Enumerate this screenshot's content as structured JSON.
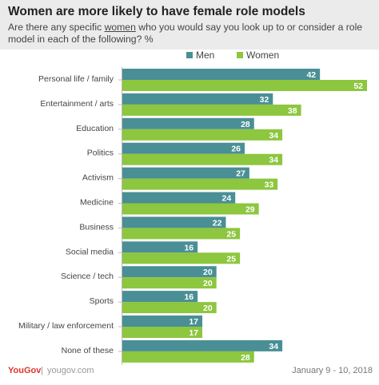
{
  "header": {
    "title": "Women are more likely to have female role models",
    "subtitle_pre": "Are there any specific ",
    "subtitle_underlined": "women",
    "subtitle_post": " who you would say you look up to or consider a role model in each of the following? %"
  },
  "footer": {
    "brand": "YouGov",
    "separator": "|",
    "url": "yougov.com",
    "date": "January 9 - 10, 2018"
  },
  "chart_data": {
    "type": "bar",
    "orientation": "horizontal",
    "categories": [
      "Personal life / family",
      "Entertainment / arts",
      "Education",
      "Politics",
      "Activism",
      "Medicine",
      "Business",
      "Social media",
      "Science / tech",
      "Sports",
      "Military / law enforcement",
      "None of these"
    ],
    "series": [
      {
        "name": "Men",
        "color": "#4a8f95",
        "values": [
          42,
          32,
          28,
          26,
          27,
          24,
          22,
          16,
          20,
          16,
          17,
          34
        ]
      },
      {
        "name": "Women",
        "color": "#8dc63f",
        "values": [
          52,
          38,
          34,
          34,
          33,
          29,
          25,
          25,
          20,
          20,
          17,
          28
        ]
      }
    ],
    "xlim": [
      0,
      52
    ],
    "grid": false,
    "legend_position": "top-right",
    "data_labels": true
  }
}
